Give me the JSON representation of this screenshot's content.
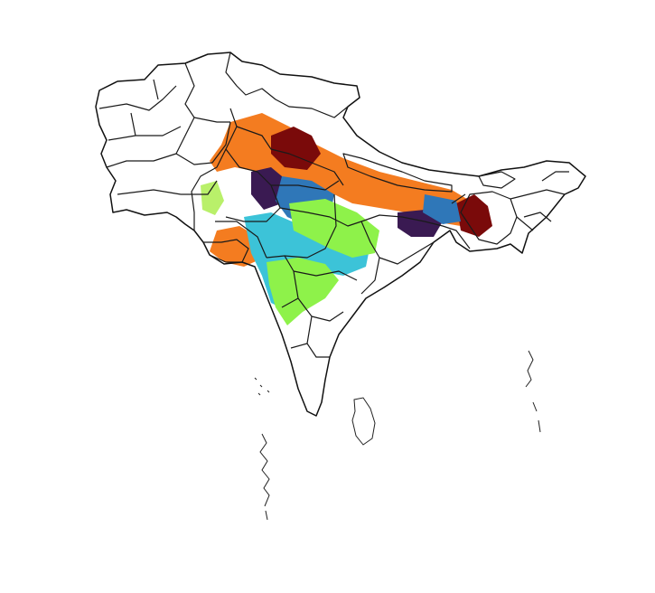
{
  "map": {
    "region": "South Asia",
    "legend": "none",
    "palette": {
      "dark_red": "#7a0a0a",
      "orange": "#f47c20",
      "dark_purple": "#3a1a52",
      "blue": "#2f77b8",
      "cyan": "#3cc3d8",
      "green": "#8ef24a",
      "light_green": "#b9f06a"
    },
    "borders_color": "#1a1a1a",
    "background": "#ffffff"
  }
}
